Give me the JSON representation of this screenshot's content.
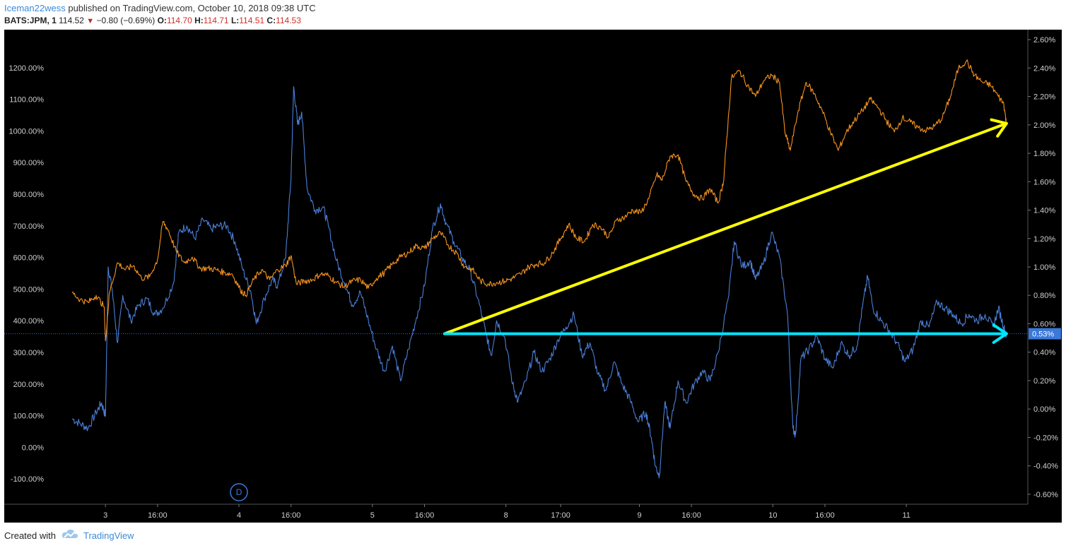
{
  "header": {
    "author": "Iceman22wess",
    "published": "published on TradingView.com, October 10, 2018 09:38 UTC",
    "symbol": "BATS:JPM, 1",
    "last": "114.52",
    "change_arrow": "▼",
    "change": "−0.80 (−0.69%)",
    "o_label": "O:",
    "o": "114.70",
    "h_label": "H:",
    "h": "114.71",
    "l_label": "L:",
    "l": "114.51",
    "c_label": "C:",
    "c": "114.53"
  },
  "footer": {
    "created_with": "Created with",
    "brand": "TradingView"
  },
  "colors": {
    "background": "#000000",
    "blue_series": "#4a7fd8",
    "orange_series": "#f7931e",
    "yellow_arrow": "#ffff00",
    "cyan_arrow": "#00e5ff",
    "price_line": "#3b6fd8",
    "price_badge": "#3b78d8"
  },
  "chart_data": {
    "type": "line",
    "left_axis": {
      "ticks": [
        "1200.00%",
        "1100.00%",
        "1000.00%",
        "900.00%",
        "800.00%",
        "700.00%",
        "600.00%",
        "500.00%",
        "400.00%",
        "300.00%",
        "200.00%",
        "100.00%",
        "0.00%",
        "-100.00%"
      ],
      "values": [
        1200,
        1100,
        1000,
        900,
        800,
        700,
        600,
        500,
        400,
        300,
        200,
        100,
        0,
        -100
      ],
      "ylim": [
        -180,
        1320
      ]
    },
    "right_axis": {
      "ticks": [
        "2.60%",
        "2.40%",
        "2.20%",
        "2.00%",
        "1.80%",
        "1.60%",
        "1.40%",
        "1.20%",
        "1.00%",
        "0.80%",
        "0.60%",
        "0.40%",
        "0.20%",
        "0.00%",
        "-0.20%",
        "-0.40%",
        "-0.60%"
      ],
      "values": [
        2.6,
        2.4,
        2.2,
        2.0,
        1.8,
        1.6,
        1.4,
        1.2,
        1.0,
        0.8,
        0.6,
        0.4,
        0.2,
        0.0,
        -0.2,
        -0.4,
        -0.6
      ],
      "ylim": [
        -0.67,
        2.67
      ]
    },
    "x_ticks": [
      "3",
      "16:00",
      "4",
      "16:00",
      "5",
      "16:00",
      "8",
      "17:00",
      "9",
      "16:00",
      "10",
      "16:00",
      "11"
    ],
    "x_tick_pos": [
      1.25,
      3.2,
      6.25,
      8.2,
      11.25,
      13.2,
      16.25,
      18.3,
      21.25,
      23.2,
      26.25,
      28.2,
      31.25
    ],
    "xlim": [
      -0.9,
      35.8
    ],
    "current_label": "0.53%",
    "current_value": 0.53,
    "day_marker": "D",
    "day_marker_x": 6.25,
    "series": [
      {
        "axis": "left",
        "color": "#4a7fd8",
        "points": [
          [
            0,
            90
          ],
          [
            0.3,
            75
          ],
          [
            0.6,
            60
          ],
          [
            0.9,
            110
          ],
          [
            1.1,
            140
          ],
          [
            1.25,
            100
          ],
          [
            1.35,
            570
          ],
          [
            1.5,
            500
          ],
          [
            1.7,
            330
          ],
          [
            1.9,
            480
          ],
          [
            2.2,
            400
          ],
          [
            2.5,
            450
          ],
          [
            2.8,
            470
          ],
          [
            3.1,
            420
          ],
          [
            3.4,
            440
          ],
          [
            3.8,
            520
          ],
          [
            4.0,
            680
          ],
          [
            4.3,
            700
          ],
          [
            4.6,
            660
          ],
          [
            4.9,
            720
          ],
          [
            5.2,
            690
          ],
          [
            5.5,
            700
          ],
          [
            5.8,
            700
          ],
          [
            6.1,
            650
          ],
          [
            6.4,
            560
          ],
          [
            6.7,
            490
          ],
          [
            6.9,
            390
          ],
          [
            7.2,
            470
          ],
          [
            7.5,
            530
          ],
          [
            7.7,
            510
          ],
          [
            8.0,
            600
          ],
          [
            8.2,
            850
          ],
          [
            8.3,
            1140
          ],
          [
            8.45,
            1020
          ],
          [
            8.6,
            1060
          ],
          [
            8.8,
            820
          ],
          [
            9.1,
            750
          ],
          [
            9.4,
            760
          ],
          [
            9.6,
            700
          ],
          [
            9.9,
            590
          ],
          [
            10.2,
            520
          ],
          [
            10.5,
            450
          ],
          [
            10.8,
            490
          ],
          [
            11.1,
            400
          ],
          [
            11.4,
            310
          ],
          [
            11.7,
            240
          ],
          [
            12.0,
            320
          ],
          [
            12.3,
            210
          ],
          [
            12.6,
            310
          ],
          [
            12.9,
            410
          ],
          [
            13.2,
            510
          ],
          [
            13.5,
            690
          ],
          [
            13.8,
            770
          ],
          [
            14.0,
            710
          ],
          [
            14.3,
            650
          ],
          [
            14.6,
            600
          ],
          [
            14.9,
            560
          ],
          [
            15.2,
            470
          ],
          [
            15.5,
            360
          ],
          [
            15.7,
            290
          ],
          [
            15.9,
            400
          ],
          [
            16.2,
            350
          ],
          [
            16.5,
            200
          ],
          [
            16.7,
            145
          ],
          [
            17.0,
            210
          ],
          [
            17.3,
            300
          ],
          [
            17.6,
            240
          ],
          [
            17.9,
            280
          ],
          [
            18.2,
            340
          ],
          [
            18.5,
            380
          ],
          [
            18.8,
            420
          ],
          [
            19.1,
            290
          ],
          [
            19.4,
            330
          ],
          [
            19.7,
            230
          ],
          [
            20.0,
            180
          ],
          [
            20.3,
            270
          ],
          [
            20.6,
            200
          ],
          [
            20.9,
            150
          ],
          [
            21.2,
            80
          ],
          [
            21.5,
            110
          ],
          [
            21.7,
            30
          ],
          [
            21.85,
            -60
          ],
          [
            22.0,
            -90
          ],
          [
            22.2,
            140
          ],
          [
            22.4,
            60
          ],
          [
            22.7,
            210
          ],
          [
            23.0,
            140
          ],
          [
            23.3,
            200
          ],
          [
            23.6,
            240
          ],
          [
            23.9,
            210
          ],
          [
            24.2,
            300
          ],
          [
            24.6,
            480
          ],
          [
            24.8,
            650
          ],
          [
            25.1,
            570
          ],
          [
            25.4,
            590
          ],
          [
            25.6,
            530
          ],
          [
            25.9,
            580
          ],
          [
            26.2,
            680
          ],
          [
            26.5,
            600
          ],
          [
            26.8,
            420
          ],
          [
            27.0,
            60
          ],
          [
            27.1,
            40
          ],
          [
            27.3,
            280
          ],
          [
            27.6,
            310
          ],
          [
            27.9,
            350
          ],
          [
            28.2,
            280
          ],
          [
            28.5,
            250
          ],
          [
            28.8,
            330
          ],
          [
            29.1,
            290
          ],
          [
            29.4,
            320
          ],
          [
            29.6,
            440
          ],
          [
            29.8,
            540
          ],
          [
            30.0,
            440
          ],
          [
            30.3,
            400
          ],
          [
            30.6,
            370
          ],
          [
            30.9,
            330
          ],
          [
            31.2,
            270
          ],
          [
            31.5,
            310
          ],
          [
            31.8,
            400
          ],
          [
            32.1,
            380
          ],
          [
            32.4,
            460
          ],
          [
            32.7,
            440
          ],
          [
            33.0,
            420
          ],
          [
            33.3,
            390
          ],
          [
            33.6,
            420
          ],
          [
            33.9,
            400
          ],
          [
            34.2,
            420
          ],
          [
            34.5,
            380
          ],
          [
            34.7,
            440
          ],
          [
            34.9,
            380
          ],
          [
            35.0,
            350
          ]
        ]
      },
      {
        "axis": "right",
        "color": "#f7931e",
        "points": [
          [
            0,
            0.82
          ],
          [
            0.3,
            0.77
          ],
          [
            0.6,
            0.75
          ],
          [
            0.9,
            0.8
          ],
          [
            1.2,
            0.72
          ],
          [
            1.25,
            0.48
          ],
          [
            1.4,
            0.82
          ],
          [
            1.7,
            1.03
          ],
          [
            2.0,
            0.98
          ],
          [
            2.3,
            1.01
          ],
          [
            2.6,
            0.92
          ],
          [
            2.9,
            0.93
          ],
          [
            3.2,
            1.05
          ],
          [
            3.4,
            1.32
          ],
          [
            3.6,
            1.26
          ],
          [
            3.9,
            1.11
          ],
          [
            4.2,
            1.03
          ],
          [
            4.5,
            1.07
          ],
          [
            4.8,
            0.99
          ],
          [
            5.1,
            0.99
          ],
          [
            5.4,
            0.98
          ],
          [
            5.7,
            0.96
          ],
          [
            6.0,
            0.95
          ],
          [
            6.3,
            0.84
          ],
          [
            6.5,
            0.8
          ],
          [
            6.8,
            0.91
          ],
          [
            7.1,
            0.98
          ],
          [
            7.4,
            0.91
          ],
          [
            7.7,
            0.98
          ],
          [
            8.0,
            1.01
          ],
          [
            8.2,
            1.08
          ],
          [
            8.4,
            0.88
          ],
          [
            8.7,
            0.9
          ],
          [
            9.0,
            0.91
          ],
          [
            9.3,
            0.95
          ],
          [
            9.6,
            0.94
          ],
          [
            9.9,
            0.89
          ],
          [
            10.2,
            0.86
          ],
          [
            10.5,
            0.9
          ],
          [
            10.8,
            0.91
          ],
          [
            11.1,
            0.85
          ],
          [
            11.4,
            0.92
          ],
          [
            11.7,
            0.96
          ],
          [
            12.0,
            1.02
          ],
          [
            12.3,
            1.07
          ],
          [
            12.6,
            1.1
          ],
          [
            12.9,
            1.15
          ],
          [
            13.2,
            1.13
          ],
          [
            13.5,
            1.2
          ],
          [
            13.8,
            1.24
          ],
          [
            14.1,
            1.15
          ],
          [
            14.4,
            1.1
          ],
          [
            14.7,
            1.0
          ],
          [
            15.0,
            0.98
          ],
          [
            15.3,
            0.9
          ],
          [
            15.6,
            0.88
          ],
          [
            15.9,
            0.89
          ],
          [
            16.2,
            0.9
          ],
          [
            16.5,
            0.92
          ],
          [
            16.8,
            0.95
          ],
          [
            17.1,
            1.0
          ],
          [
            17.4,
            1.02
          ],
          [
            17.7,
            1.03
          ],
          [
            18.0,
            1.1
          ],
          [
            18.3,
            1.2
          ],
          [
            18.6,
            1.3
          ],
          [
            18.9,
            1.2
          ],
          [
            19.2,
            1.18
          ],
          [
            19.5,
            1.3
          ],
          [
            19.8,
            1.28
          ],
          [
            20.1,
            1.21
          ],
          [
            20.4,
            1.33
          ],
          [
            20.7,
            1.35
          ],
          [
            21.0,
            1.4
          ],
          [
            21.3,
            1.38
          ],
          [
            21.6,
            1.48
          ],
          [
            21.9,
            1.65
          ],
          [
            22.1,
            1.61
          ],
          [
            22.4,
            1.78
          ],
          [
            22.7,
            1.79
          ],
          [
            23.0,
            1.6
          ],
          [
            23.3,
            1.51
          ],
          [
            23.6,
            1.48
          ],
          [
            23.9,
            1.55
          ],
          [
            24.2,
            1.45
          ],
          [
            24.4,
            1.6
          ],
          [
            24.5,
            1.85
          ],
          [
            24.7,
            2.33
          ],
          [
            25.0,
            2.38
          ],
          [
            25.3,
            2.28
          ],
          [
            25.6,
            2.2
          ],
          [
            25.9,
            2.31
          ],
          [
            26.2,
            2.35
          ],
          [
            26.5,
            2.3
          ],
          [
            26.7,
            1.95
          ],
          [
            26.9,
            1.82
          ],
          [
            27.2,
            2.1
          ],
          [
            27.5,
            2.3
          ],
          [
            27.8,
            2.22
          ],
          [
            28.1,
            2.1
          ],
          [
            28.4,
            1.95
          ],
          [
            28.7,
            1.82
          ],
          [
            29.0,
            1.95
          ],
          [
            29.3,
            2.03
          ],
          [
            29.6,
            2.1
          ],
          [
            29.9,
            2.18
          ],
          [
            30.2,
            2.12
          ],
          [
            30.5,
            2.03
          ],
          [
            30.8,
            1.95
          ],
          [
            31.1,
            2.05
          ],
          [
            31.4,
            2.02
          ],
          [
            31.7,
            1.98
          ],
          [
            32.0,
            1.96
          ],
          [
            32.3,
            1.99
          ],
          [
            32.6,
            2.05
          ],
          [
            32.9,
            2.2
          ],
          [
            33.2,
            2.4
          ],
          [
            33.5,
            2.45
          ],
          [
            33.8,
            2.35
          ],
          [
            34.1,
            2.3
          ],
          [
            34.4,
            2.28
          ],
          [
            34.7,
            2.2
          ],
          [
            34.9,
            2.15
          ],
          [
            35.0,
            2.0
          ]
        ]
      }
    ],
    "annotations": [
      {
        "type": "arrow",
        "color": "#ffff00",
        "axis": "right",
        "from": [
          13.95,
          0.53
        ],
        "to": [
          35.0,
          2.01
        ]
      },
      {
        "type": "arrow",
        "color": "#00e5ff",
        "axis": "right",
        "from": [
          13.95,
          0.53
        ],
        "to": [
          35.0,
          0.53
        ]
      }
    ]
  }
}
